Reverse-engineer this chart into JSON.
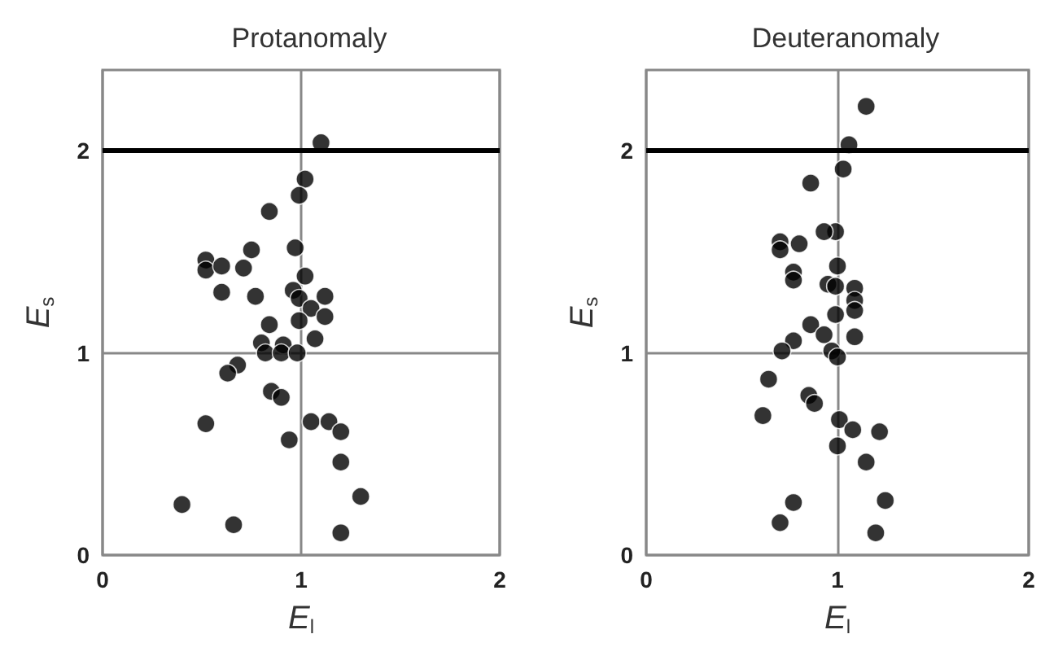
{
  "chart_data": [
    {
      "type": "scatter",
      "title": "Protanomaly",
      "xlabel": "E$_{l}$",
      "ylabel": "E$_{s}$",
      "xlim": [
        0,
        2
      ],
      "xticks": [
        0,
        1,
        2
      ],
      "ylim": [
        0,
        2.4
      ],
      "yticks": [
        0,
        1,
        2
      ],
      "grid": true,
      "marker": "circle",
      "color": "#000000",
      "x": [
        1.1,
        1.02,
        0.99,
        0.84,
        0.97,
        0.75,
        0.52,
        0.52,
        0.6,
        0.71,
        0.6,
        1.02,
        0.77,
        0.96,
        0.99,
        1.12,
        1.05,
        1.12,
        0.99,
        0.84,
        1.07,
        0.8,
        0.82,
        0.91,
        0.9,
        0.98,
        0.68,
        0.63,
        0.85,
        0.9,
        0.52,
        1.05,
        1.14,
        1.2,
        0.94,
        1.2,
        1.3,
        0.4,
        0.66,
        1.2
      ],
      "values": [
        2.04,
        1.86,
        1.78,
        1.7,
        1.52,
        1.51,
        1.46,
        1.41,
        1.43,
        1.42,
        1.3,
        1.38,
        1.28,
        1.31,
        1.27,
        1.28,
        1.22,
        1.18,
        1.16,
        1.14,
        1.07,
        1.05,
        1.0,
        1.04,
        1.0,
        1.0,
        0.94,
        0.9,
        0.81,
        0.78,
        0.65,
        0.66,
        0.66,
        0.61,
        0.57,
        0.46,
        0.29,
        0.25,
        0.15,
        0.11
      ],
      "ref_lines": [
        {
          "axis": "y",
          "value": 2,
          "color": "#000000",
          "line_style": "solid"
        }
      ]
    },
    {
      "type": "scatter",
      "title": "Deuteranomaly",
      "xlabel": "E$_{l}$",
      "ylabel": "E$_{s}$",
      "xlim": [
        0,
        2
      ],
      "xticks": [
        0,
        1,
        2
      ],
      "ylim": [
        0,
        2.4
      ],
      "yticks": [
        0,
        1,
        2
      ],
      "grid": true,
      "marker": "circle",
      "color": "#000000",
      "x": [
        1.15,
        1.06,
        1.03,
        0.86,
        0.99,
        0.93,
        0.7,
        0.7,
        0.8,
        1.0,
        0.77,
        0.77,
        0.95,
        0.99,
        1.09,
        1.09,
        1.09,
        0.99,
        0.86,
        0.93,
        1.09,
        0.77,
        0.71,
        0.97,
        1.0,
        0.64,
        0.85,
        0.88,
        0.61,
        1.01,
        1.08,
        1.22,
        1.0,
        1.15,
        1.25,
        0.77,
        0.7,
        1.2
      ],
      "values": [
        2.22,
        2.03,
        1.91,
        1.84,
        1.6,
        1.6,
        1.55,
        1.51,
        1.54,
        1.43,
        1.4,
        1.36,
        1.34,
        1.33,
        1.32,
        1.26,
        1.21,
        1.19,
        1.14,
        1.09,
        1.08,
        1.06,
        1.01,
        1.01,
        0.98,
        0.87,
        0.79,
        0.75,
        0.69,
        0.67,
        0.62,
        0.61,
        0.54,
        0.46,
        0.27,
        0.26,
        0.16,
        0.11
      ],
      "ref_lines": [
        {
          "axis": "y",
          "value": 2,
          "color": "#000000",
          "line_style": "solid"
        }
      ]
    }
  ]
}
